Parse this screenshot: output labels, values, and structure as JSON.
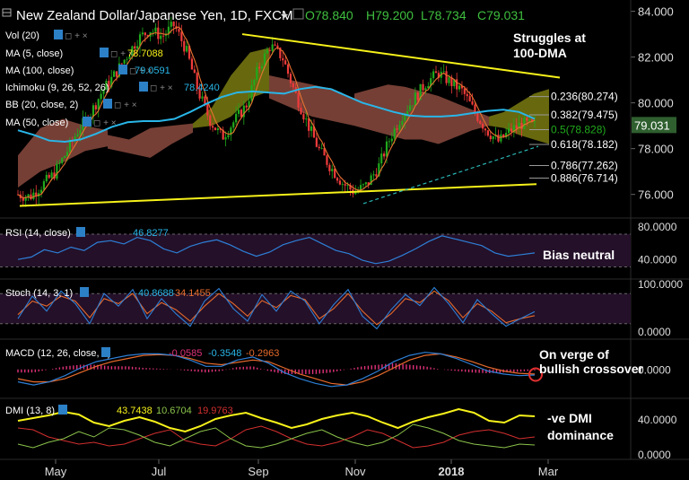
{
  "header": {
    "symbol_title": "New Zealand Dollar/Japanese Yen, 1D, FXCM",
    "ohlc": {
      "open": "O78.840",
      "high": "H79.200",
      "low": "L78.734",
      "close": "C79.031"
    }
  },
  "colors": {
    "background": "#000000",
    "up_candle": "#21a91c",
    "down_candle": "#ef3b3b",
    "trendline": "#f7f21a",
    "ma100": "#29b6e8",
    "kumo_bull": "#7a7a12",
    "kumo_bear": "#8a4a3e",
    "rsi_line": "#2e7fd6",
    "stoch_k": "#2e7fd6",
    "stoch_d": "#e66a2c",
    "macd_line": "#2e7fd6",
    "macd_signal": "#e66a2c",
    "macd_hist": "#e0327a",
    "adx": "#f7f21a",
    "di_plus": "#8bc34a",
    "di_minus": "#d32f2f",
    "fib": "#dddddd",
    "fib_50": "#21a91c",
    "panel_fill": "#241029"
  },
  "chart_data": [
    {
      "type": "candlestick",
      "title": "New Zealand Dollar/Japanese Yen, 1D, FXCM",
      "x_tick_labels": [
        "May",
        "Jul",
        "Sep",
        "Nov",
        "2018",
        "Mar"
      ],
      "y_tick_labels": [
        "84.000",
        "82.000",
        "80.000",
        "78.000",
        "76.000"
      ],
      "ylim": [
        75.4,
        84.1
      ],
      "last_price": "79.031",
      "indicator_legend": [
        {
          "label": "Vol (20)",
          "value": ""
        },
        {
          "label": "MA (5, close)",
          "value": "78.7088"
        },
        {
          "label": "MA (100, close)",
          "value": "79.0591"
        },
        {
          "label": "Ichimoku (9, 26, 52, 26)",
          "value": "78.4240"
        },
        {
          "label": "BB (20, close, 2)",
          "value": ""
        },
        {
          "label": "MA (50, close)",
          "value": ""
        }
      ],
      "close_path": [
        76.0,
        75.9,
        76.4,
        76.9,
        77.8,
        78.8,
        79.5,
        80.5,
        81.2,
        82.0,
        82.8,
        83.2,
        82.9,
        83.4,
        82.3,
        80.5,
        79.2,
        78.5,
        79.2,
        79.9,
        81.5,
        82.5,
        82.0,
        80.5,
        79.2,
        78.0,
        77.2,
        76.5,
        76.1,
        76.4,
        77.2,
        78.5,
        79.5,
        80.2,
        80.9,
        81.3,
        80.9,
        80.5,
        79.6,
        78.8,
        78.3,
        78.8,
        79.1,
        79.0
      ],
      "ma100_path": [
        78.8,
        78.6,
        78.35,
        78.3,
        78.4,
        78.65,
        78.95,
        79.15,
        79.2,
        79.2,
        79.3,
        79.6,
        79.95,
        80.25,
        80.45,
        80.5,
        80.45,
        80.4,
        80.6,
        80.7,
        80.6,
        80.3,
        80.0,
        79.8,
        79.6,
        79.45,
        79.4,
        79.4,
        79.45,
        79.55,
        79.65,
        79.7,
        79.6,
        79.3
      ],
      "trendlines": [
        {
          "name": "upper-resistance",
          "from": [
            "Aug",
            83.0
          ],
          "to": [
            "Mar",
            81.1
          ]
        },
        {
          "name": "lower-support",
          "from": [
            "Apr",
            75.5
          ],
          "to": [
            "Feb",
            76.4
          ]
        }
      ],
      "fibonacci": [
        {
          "label": "0.236(80.274)",
          "level": 80.274
        },
        {
          "label": "0.382(79.475)",
          "level": 79.475
        },
        {
          "label": "0.5(78.828)",
          "level": 78.828
        },
        {
          "label": "0.618(78.182)",
          "level": 78.182
        },
        {
          "label": "0.786(77.262)",
          "level": 77.262
        },
        {
          "label": "0.886(76.714)",
          "level": 76.714
        }
      ],
      "annotations": [
        "Struggles at",
        "100-DMA"
      ]
    },
    {
      "type": "line",
      "name": "RSI",
      "legend_label": "RSI (14, close)",
      "legend_value": "46.8277",
      "y_tick_labels": [
        "80.0000",
        "40.0000"
      ],
      "ylim": [
        25,
        82
      ],
      "band": [
        30,
        70
      ],
      "values": [
        39,
        42,
        51,
        47,
        54,
        50,
        60,
        62,
        58,
        66,
        62,
        52,
        47,
        55,
        60,
        63,
        57,
        49,
        43,
        48,
        57,
        62,
        66,
        58,
        50,
        46,
        38,
        34,
        37,
        44,
        52,
        61,
        68,
        64,
        60,
        56,
        47,
        43,
        45,
        47
      ],
      "annotation": "Bias neutral"
    },
    {
      "type": "line",
      "name": "Stochastic",
      "legend_label": "Stoch (14, 3, 1)",
      "legend_values": [
        "40.8688",
        "34.1455"
      ],
      "y_tick_labels": [
        "100.0000",
        "0.0000"
      ],
      "ylim": [
        0,
        100
      ],
      "band": [
        20,
        80
      ],
      "k_values": [
        30,
        75,
        45,
        85,
        60,
        20,
        80,
        55,
        88,
        30,
        70,
        40,
        15,
        65,
        90,
        50,
        25,
        78,
        45,
        85,
        65,
        20,
        58,
        88,
        35,
        10,
        48,
        78,
        56,
        92,
        60,
        22,
        68,
        40,
        15,
        30,
        44
      ],
      "d_values": [
        38,
        65,
        55,
        75,
        65,
        32,
        70,
        60,
        80,
        40,
        62,
        48,
        25,
        55,
        80,
        60,
        35,
        66,
        52,
        76,
        68,
        30,
        50,
        80,
        45,
        18,
        40,
        70,
        62,
        85,
        66,
        32,
        60,
        45,
        22,
        30,
        36
      ]
    },
    {
      "type": "line",
      "name": "MACD",
      "legend_label": "MACD (12, 26, close, 9)",
      "legend_values": [
        "-0.0585",
        "-0.3548",
        "-0.2963"
      ],
      "y_tick_labels": [
        "0.0000"
      ],
      "ylim": [
        -1.4,
        1.6
      ],
      "macd_values": [
        -0.8,
        -1.0,
        -0.8,
        -0.4,
        0.1,
        0.5,
        0.7,
        0.9,
        1.0,
        1.0,
        0.9,
        0.6,
        0.2,
        0.2,
        0.6,
        0.8,
        0.4,
        -0.2,
        -0.6,
        -0.9,
        -1.1,
        -1.0,
        -0.6,
        -0.1,
        0.5,
        0.9,
        1.1,
        1.0,
        0.7,
        0.3,
        -0.1,
        -0.3,
        -0.4,
        -0.36
      ],
      "signal_values": [
        -0.6,
        -0.8,
        -0.8,
        -0.6,
        -0.2,
        0.2,
        0.5,
        0.7,
        0.9,
        0.95,
        0.9,
        0.7,
        0.4,
        0.3,
        0.45,
        0.6,
        0.5,
        0.1,
        -0.3,
        -0.6,
        -0.9,
        -1.0,
        -0.8,
        -0.4,
        0.1,
        0.6,
        0.9,
        1.0,
        0.8,
        0.5,
        0.15,
        -0.1,
        -0.25,
        -0.3
      ],
      "annotation": [
        "On verge of",
        "bullish crossover"
      ]
    },
    {
      "type": "line",
      "name": "DMI",
      "legend_label": "DMI (13, 8)",
      "legend_values": [
        "43.7438",
        "10.6704",
        "19.9763"
      ],
      "y_tick_labels": [
        "40.0000",
        "0.0000"
      ],
      "ylim": [
        0,
        58
      ],
      "adx_values": [
        38,
        41,
        44,
        48,
        45,
        36,
        32,
        38,
        42,
        37,
        30,
        26,
        32,
        40,
        44,
        47,
        41,
        36,
        30,
        34,
        40,
        44,
        47,
        43,
        36,
        30,
        37,
        42,
        46,
        51,
        47,
        38,
        36,
        44,
        43
      ],
      "di_plus_values": [
        12,
        8,
        14,
        18,
        26,
        20,
        30,
        28,
        22,
        14,
        10,
        18,
        26,
        30,
        18,
        10,
        8,
        12,
        18,
        24,
        28,
        20,
        14,
        10,
        14,
        22,
        34,
        30,
        24,
        16,
        12,
        10,
        8,
        12,
        11
      ],
      "di_minus_values": [
        30,
        28,
        20,
        16,
        12,
        14,
        10,
        12,
        18,
        24,
        28,
        16,
        12,
        10,
        18,
        28,
        32,
        26,
        18,
        12,
        10,
        14,
        20,
        28,
        24,
        16,
        8,
        10,
        14,
        22,
        26,
        28,
        24,
        18,
        20
      ],
      "annotation": [
        "-ve DMI",
        "dominance"
      ]
    }
  ]
}
